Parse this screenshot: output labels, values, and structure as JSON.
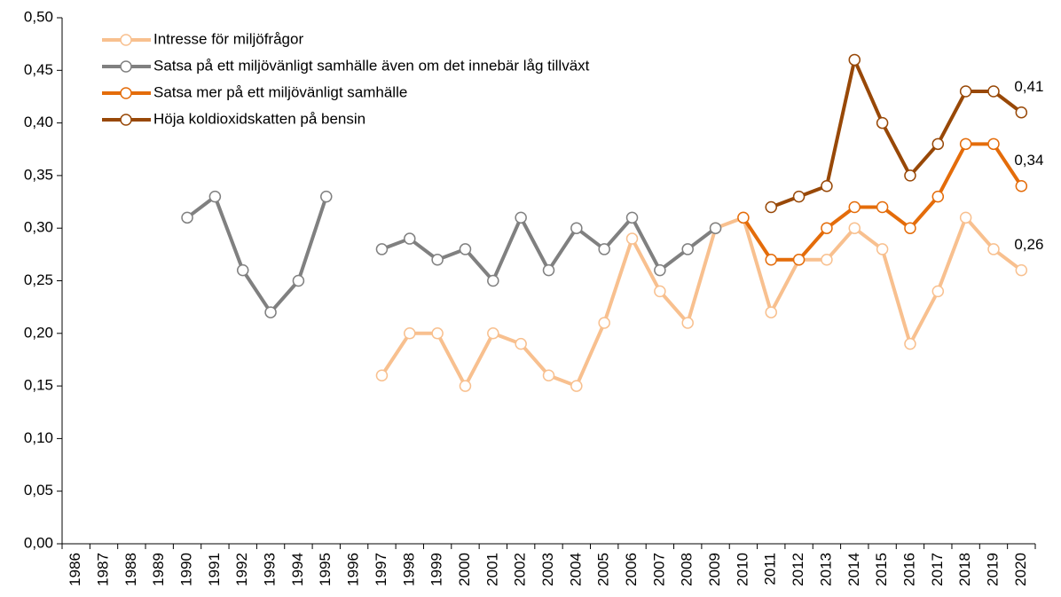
{
  "chart_data": {
    "type": "line",
    "categories": [
      "1986",
      "1987",
      "1988",
      "1989",
      "1990",
      "1991",
      "1992",
      "1993",
      "1994",
      "1995",
      "1996",
      "1997",
      "1998",
      "1999",
      "2000",
      "2001",
      "2002",
      "2003",
      "2004",
      "2005",
      "2006",
      "2007",
      "2008",
      "2009",
      "2010",
      "2011",
      "2012",
      "2013",
      "2014",
      "2015",
      "2016",
      "2017",
      "2018",
      "2019",
      "2020"
    ],
    "series": [
      {
        "name": "Intresse för miljöfrågor",
        "color": "#f8c08f",
        "values": [
          null,
          null,
          null,
          null,
          null,
          null,
          null,
          null,
          null,
          null,
          null,
          0.16,
          0.2,
          0.2,
          0.15,
          0.2,
          0.19,
          0.16,
          0.15,
          0.21,
          0.29,
          0.24,
          0.21,
          0.3,
          0.31,
          0.22,
          0.27,
          0.27,
          0.3,
          0.28,
          0.19,
          0.24,
          0.31,
          0.28,
          0.26
        ],
        "value_labels": [
          null,
          null,
          null,
          null,
          null,
          null,
          null,
          null,
          null,
          null,
          null,
          null,
          null,
          null,
          null,
          null,
          null,
          null,
          null,
          null,
          null,
          null,
          null,
          null,
          null,
          null,
          null,
          null,
          null,
          null,
          null,
          null,
          null,
          null,
          "0,26"
        ]
      },
      {
        "name": "Satsa på ett miljövänligt samhälle även om det innebär låg tillväxt",
        "color": "#808080",
        "values": [
          null,
          null,
          null,
          null,
          0.31,
          0.33,
          0.26,
          0.22,
          0.25,
          0.33,
          null,
          0.28,
          0.29,
          0.27,
          0.28,
          0.25,
          0.31,
          0.26,
          0.3,
          0.28,
          0.31,
          0.26,
          0.28,
          0.3,
          null,
          null,
          null,
          null,
          null,
          null,
          null,
          null,
          null,
          null,
          null
        ]
      },
      {
        "name": "Satsa mer på ett miljövänligt samhälle",
        "color": "#e46c0a",
        "values": [
          null,
          null,
          null,
          null,
          null,
          null,
          null,
          null,
          null,
          null,
          null,
          null,
          null,
          null,
          null,
          null,
          null,
          null,
          null,
          null,
          null,
          null,
          null,
          null,
          0.31,
          0.27,
          0.27,
          0.3,
          0.32,
          0.32,
          0.3,
          0.33,
          0.38,
          0.38,
          0.34
        ],
        "value_labels": [
          null,
          null,
          null,
          null,
          null,
          null,
          null,
          null,
          null,
          null,
          null,
          null,
          null,
          null,
          null,
          null,
          null,
          null,
          null,
          null,
          null,
          null,
          null,
          null,
          null,
          null,
          null,
          null,
          null,
          null,
          null,
          null,
          null,
          null,
          "0,34"
        ]
      },
      {
        "name": "Höja koldioxidskatten på bensin",
        "color": "#984807",
        "values": [
          null,
          null,
          null,
          null,
          null,
          null,
          null,
          null,
          null,
          null,
          null,
          null,
          null,
          null,
          null,
          null,
          null,
          null,
          null,
          null,
          null,
          null,
          null,
          null,
          null,
          0.32,
          0.33,
          0.34,
          0.46,
          0.4,
          0.35,
          0.38,
          0.43,
          0.43,
          0.41
        ],
        "value_labels": [
          null,
          null,
          null,
          null,
          null,
          null,
          null,
          null,
          null,
          null,
          null,
          null,
          null,
          null,
          null,
          null,
          null,
          null,
          null,
          null,
          null,
          null,
          null,
          null,
          null,
          null,
          null,
          null,
          null,
          null,
          null,
          null,
          null,
          null,
          "0,41"
        ]
      }
    ],
    "ylim": [
      0,
      0.5
    ],
    "yticks": [
      {
        "value": 0,
        "label": "0,00"
      },
      {
        "value": 0.05,
        "label": "0,05"
      },
      {
        "value": 0.1,
        "label": "0,10"
      },
      {
        "value": 0.15,
        "label": "0,15"
      },
      {
        "value": 0.2,
        "label": "0,20"
      },
      {
        "value": 0.25,
        "label": "0,25"
      },
      {
        "value": 0.3,
        "label": "0,30"
      },
      {
        "value": 0.35,
        "label": "0,35"
      },
      {
        "value": 0.4,
        "label": "0,40"
      },
      {
        "value": 0.45,
        "label": "0,45"
      },
      {
        "value": 0.5,
        "label": "0,50"
      }
    ],
    "grid": false,
    "legend": "upper left"
  }
}
